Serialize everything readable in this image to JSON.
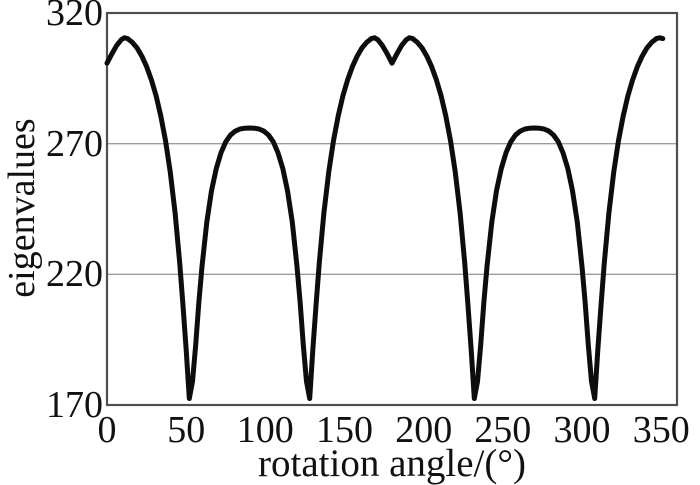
{
  "figure": {
    "background": "#ffffff",
    "curve_color": "#0d0d0d",
    "axis_color": "#4f4f4f",
    "gridline_color": "#9c9c9c",
    "text_color": "#111111"
  },
  "chart_data": {
    "type": "line",
    "title": "",
    "xlabel": "rotation angle/(°)",
    "ylabel": "eigenvalues",
    "xlim": [
      0,
      360
    ],
    "ylim": [
      170,
      320
    ],
    "xticks": [
      0,
      50,
      100,
      150,
      200,
      250,
      300,
      350
    ],
    "yticks": [
      170,
      220,
      270,
      320
    ],
    "grid_y": [
      220,
      270
    ],
    "grid_x": [],
    "legend": "none",
    "series": [
      {
        "name": "eigenvalues",
        "x": [
          0,
          3,
          6,
          9,
          11,
          13,
          16,
          19,
          22,
          25,
          28,
          31,
          34,
          37,
          40,
          43,
          46,
          48,
          50,
          52,
          54,
          56,
          58,
          60,
          63,
          66,
          69,
          72,
          75,
          78,
          81,
          84,
          87,
          90,
          93,
          96,
          99,
          102,
          105,
          108,
          111,
          114,
          117,
          120,
          122,
          124,
          126,
          128,
          130,
          132,
          134,
          137,
          140,
          143,
          146,
          149,
          152,
          155,
          158,
          161,
          164,
          167,
          169,
          171,
          174,
          177,
          180,
          183,
          186,
          189,
          191,
          193,
          196,
          199,
          202,
          205,
          208,
          211,
          214,
          217,
          220,
          223,
          226,
          228,
          230,
          232,
          234,
          236,
          238,
          240,
          243,
          246,
          249,
          252,
          255,
          258,
          261,
          264,
          267,
          270,
          273,
          276,
          279,
          282,
          285,
          288,
          291,
          294,
          297,
          300,
          302,
          304,
          306,
          308,
          310,
          312,
          314,
          317,
          320,
          323,
          326,
          329,
          332,
          335,
          338,
          341,
          344,
          347,
          349,
          351
        ],
        "y": [
          300.8,
          304.3,
          307.5,
          309.8,
          310.5,
          310.2,
          308.8,
          306.6,
          303.5,
          299.5,
          294.5,
          288.3,
          280.6,
          271,
          259,
          243.5,
          224,
          208,
          191,
          172.5,
          179,
          193,
          209,
          223,
          240,
          252,
          260.5,
          266.5,
          270.7,
          273.3,
          274.8,
          275.6,
          275.9,
          276,
          275.9,
          275.6,
          274.8,
          273.3,
          270.7,
          266.5,
          260.5,
          252,
          240,
          223,
          209,
          193,
          179,
          172.5,
          191,
          208,
          224,
          243.5,
          259,
          271,
          280.6,
          288.3,
          294.5,
          299.5,
          303.5,
          306.6,
          308.8,
          310.2,
          310.5,
          309.8,
          307.5,
          304.3,
          300.8,
          304.3,
          307.5,
          309.8,
          310.5,
          310.2,
          308.8,
          306.6,
          303.5,
          299.5,
          294.5,
          288.3,
          280.6,
          271,
          259,
          243.5,
          224,
          208,
          191,
          172.5,
          179,
          193,
          209,
          223,
          240,
          252,
          260.5,
          266.5,
          270.7,
          273.3,
          274.8,
          275.6,
          275.9,
          276,
          275.9,
          275.6,
          274.8,
          273.3,
          270.7,
          266.5,
          260.5,
          252,
          240,
          223,
          209,
          193,
          179,
          172.5,
          191,
          208,
          224,
          243.5,
          259,
          271,
          280.6,
          288.3,
          294.5,
          299.5,
          303.5,
          306.6,
          308.8,
          310.2,
          310.5,
          310.2
        ]
      }
    ]
  }
}
